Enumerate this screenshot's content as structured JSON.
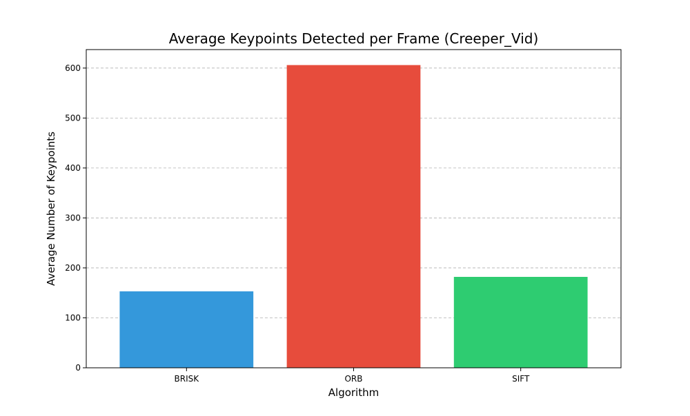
{
  "chart_data": {
    "type": "bar",
    "title": "Average Keypoints Detected per Frame (Creeper_Vid)",
    "xlabel": "Algorithm",
    "ylabel": "Average Number of Keypoints",
    "categories": [
      "BRISK",
      "ORB",
      "SIFT"
    ],
    "values": [
      153,
      606,
      182
    ],
    "colors": [
      "#3498db",
      "#e74c3c",
      "#2ecc71"
    ],
    "ylim": [
      0,
      637
    ],
    "yticks": [
      0,
      100,
      200,
      300,
      400,
      500,
      600
    ],
    "grid": "y-dashed",
    "legend": "none"
  }
}
